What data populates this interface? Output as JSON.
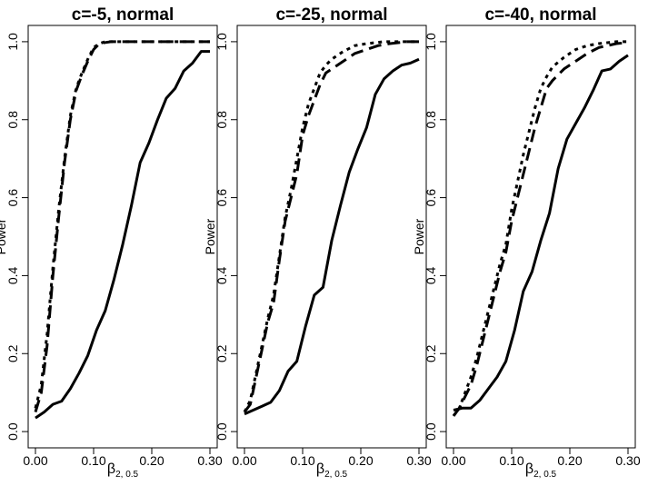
{
  "chart_data": [
    {
      "type": "line",
      "title": "c=-5, normal",
      "xlabel": "β2, 0.5",
      "ylabel": "Power",
      "xlim": [
        0.0,
        0.3
      ],
      "ylim": [
        0.0,
        1.0
      ],
      "xticks": [
        "0.00",
        "0.10",
        "0.20",
        "0.30"
      ],
      "yticks": [
        "0.0",
        "0.2",
        "0.4",
        "0.6",
        "0.8",
        "1.0"
      ],
      "grid": false,
      "legend": "none",
      "series": [
        {
          "style": "solid",
          "x": [
            0.0,
            0.015,
            0.03,
            0.045,
            0.06,
            0.075,
            0.09,
            0.105,
            0.12,
            0.135,
            0.15,
            0.165,
            0.18,
            0.195,
            0.21,
            0.225,
            0.24,
            0.255,
            0.27,
            0.285,
            0.3
          ],
          "y": [
            0.035,
            0.05,
            0.07,
            0.078,
            0.11,
            0.15,
            0.195,
            0.26,
            0.31,
            0.39,
            0.48,
            0.58,
            0.69,
            0.74,
            0.8,
            0.855,
            0.88,
            0.925,
            0.945,
            0.975,
            0.975
          ]
        },
        {
          "style": "dashed",
          "x": [
            0.0,
            0.01,
            0.02,
            0.03,
            0.04,
            0.05,
            0.06,
            0.07,
            0.08,
            0.09,
            0.1,
            0.11,
            0.12,
            0.13,
            0.15,
            0.18,
            0.21,
            0.24,
            0.27,
            0.3
          ],
          "y": [
            0.05,
            0.1,
            0.22,
            0.4,
            0.55,
            0.69,
            0.8,
            0.875,
            0.915,
            0.95,
            0.98,
            0.995,
            0.998,
            1.0,
            1.0,
            1.0,
            1.0,
            1.0,
            1.0,
            1.0
          ]
        },
        {
          "style": "dotted",
          "x": [
            0.0,
            0.01,
            0.02,
            0.03,
            0.04,
            0.05,
            0.06,
            0.07,
            0.08,
            0.09,
            0.1,
            0.11,
            0.12,
            0.13,
            0.15,
            0.18,
            0.21,
            0.24,
            0.27,
            0.3
          ],
          "y": [
            0.06,
            0.12,
            0.25,
            0.42,
            0.57,
            0.7,
            0.81,
            0.88,
            0.92,
            0.955,
            0.985,
            0.995,
            1.0,
            1.0,
            1.0,
            1.0,
            1.0,
            1.0,
            1.0,
            1.0
          ]
        }
      ]
    },
    {
      "type": "line",
      "title": "c=-25, normal",
      "xlabel": "β2, 0.5",
      "ylabel": "Power",
      "xlim": [
        0.0,
        0.3
      ],
      "ylim": [
        0.0,
        1.0
      ],
      "xticks": [
        "0.00",
        "0.10",
        "0.20",
        "0.30"
      ],
      "yticks": [
        "0.0",
        "0.2",
        "0.4",
        "0.6",
        "0.8",
        "1.0"
      ],
      "grid": false,
      "legend": "none",
      "series": [
        {
          "style": "solid",
          "x": [
            0.0,
            0.015,
            0.03,
            0.045,
            0.06,
            0.075,
            0.09,
            0.105,
            0.12,
            0.135,
            0.15,
            0.165,
            0.18,
            0.195,
            0.21,
            0.225,
            0.24,
            0.255,
            0.27,
            0.285,
            0.3
          ],
          "y": [
            0.045,
            0.055,
            0.065,
            0.075,
            0.105,
            0.155,
            0.18,
            0.27,
            0.35,
            0.37,
            0.49,
            0.58,
            0.665,
            0.725,
            0.78,
            0.865,
            0.905,
            0.925,
            0.94,
            0.945,
            0.955
          ]
        },
        {
          "style": "dashed",
          "x": [
            0.0,
            0.01,
            0.02,
            0.03,
            0.04,
            0.05,
            0.06,
            0.07,
            0.08,
            0.09,
            0.1,
            0.11,
            0.12,
            0.13,
            0.14,
            0.15,
            0.17,
            0.19,
            0.21,
            0.23,
            0.25,
            0.28,
            0.3
          ],
          "y": [
            0.05,
            0.07,
            0.14,
            0.21,
            0.28,
            0.33,
            0.44,
            0.54,
            0.6,
            0.66,
            0.76,
            0.81,
            0.85,
            0.89,
            0.92,
            0.93,
            0.95,
            0.97,
            0.98,
            0.99,
            0.995,
            1.0,
            1.0
          ]
        },
        {
          "style": "dotted",
          "x": [
            0.0,
            0.01,
            0.02,
            0.03,
            0.04,
            0.05,
            0.06,
            0.07,
            0.08,
            0.09,
            0.1,
            0.11,
            0.12,
            0.13,
            0.14,
            0.15,
            0.17,
            0.19,
            0.21,
            0.24,
            0.27,
            0.3
          ],
          "y": [
            0.05,
            0.08,
            0.15,
            0.22,
            0.29,
            0.35,
            0.45,
            0.55,
            0.62,
            0.7,
            0.78,
            0.84,
            0.88,
            0.92,
            0.94,
            0.955,
            0.975,
            0.99,
            0.995,
            1.0,
            1.0,
            1.0
          ]
        }
      ]
    },
    {
      "type": "line",
      "title": "c=-40, normal",
      "xlabel": "β2, 0.5",
      "ylabel": "Power",
      "xlim": [
        0.0,
        0.3
      ],
      "ylim": [
        0.0,
        1.0
      ],
      "xticks": [
        "0.00",
        "0.10",
        "0.20",
        "0.30"
      ],
      "yticks": [
        "0.0",
        "0.2",
        "0.4",
        "0.6",
        "0.8",
        "1.0"
      ],
      "grid": false,
      "legend": "none",
      "series": [
        {
          "style": "solid",
          "x": [
            0.0,
            0.015,
            0.03,
            0.045,
            0.06,
            0.075,
            0.09,
            0.105,
            0.12,
            0.135,
            0.15,
            0.165,
            0.18,
            0.195,
            0.21,
            0.225,
            0.24,
            0.255,
            0.27,
            0.285,
            0.3
          ],
          "y": [
            0.055,
            0.06,
            0.06,
            0.08,
            0.11,
            0.14,
            0.18,
            0.26,
            0.36,
            0.41,
            0.49,
            0.56,
            0.675,
            0.75,
            0.79,
            0.83,
            0.875,
            0.925,
            0.93,
            0.95,
            0.965
          ]
        },
        {
          "style": "dashed",
          "x": [
            0.0,
            0.01,
            0.02,
            0.03,
            0.04,
            0.05,
            0.06,
            0.07,
            0.08,
            0.09,
            0.1,
            0.11,
            0.12,
            0.13,
            0.14,
            0.15,
            0.16,
            0.17,
            0.19,
            0.21,
            0.23,
            0.25,
            0.28,
            0.3
          ],
          "y": [
            0.04,
            0.06,
            0.09,
            0.12,
            0.17,
            0.23,
            0.29,
            0.35,
            0.41,
            0.46,
            0.54,
            0.6,
            0.66,
            0.72,
            0.78,
            0.83,
            0.88,
            0.9,
            0.93,
            0.95,
            0.97,
            0.985,
            0.995,
            0.998
          ]
        },
        {
          "style": "dotted",
          "x": [
            0.0,
            0.01,
            0.02,
            0.03,
            0.04,
            0.05,
            0.06,
            0.07,
            0.08,
            0.09,
            0.1,
            0.11,
            0.12,
            0.13,
            0.14,
            0.15,
            0.16,
            0.17,
            0.19,
            0.21,
            0.23,
            0.25,
            0.28,
            0.3
          ],
          "y": [
            0.04,
            0.06,
            0.1,
            0.14,
            0.19,
            0.25,
            0.31,
            0.37,
            0.43,
            0.48,
            0.57,
            0.64,
            0.71,
            0.77,
            0.83,
            0.88,
            0.91,
            0.935,
            0.96,
            0.98,
            0.99,
            0.995,
            1.0,
            1.0
          ]
        }
      ]
    }
  ]
}
